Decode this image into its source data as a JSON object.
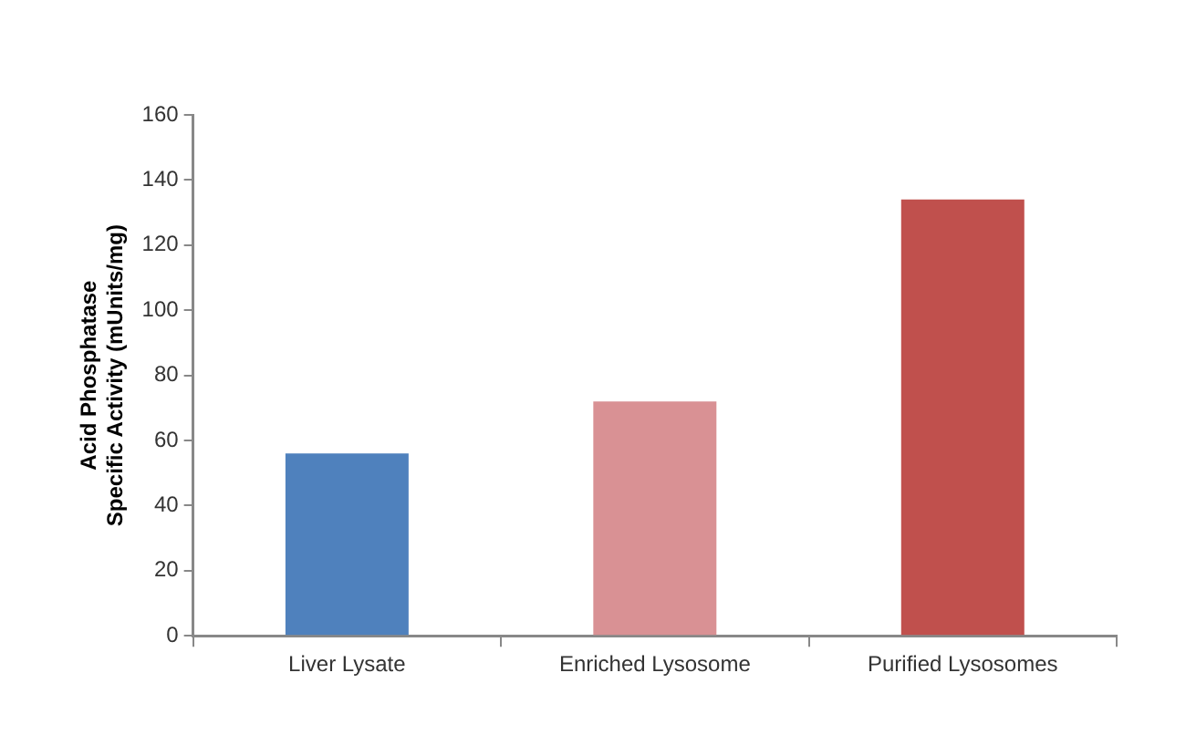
{
  "chart_data": {
    "type": "bar",
    "ylabel": "Acid Phosphatase\nSpecific Activity (mUnits/mg)",
    "categories": [
      "Liver Lysate",
      "Enriched Lysosome",
      "Purified Lysosomes"
    ],
    "values": [
      56,
      72,
      134
    ],
    "colors": [
      "#4f81bd",
      "#d99194",
      "#c0504d"
    ],
    "ylim": [
      0,
      160
    ],
    "yticks": [
      0,
      20,
      40,
      60,
      80,
      100,
      120,
      140,
      160
    ],
    "grid": false,
    "legend": false
  }
}
